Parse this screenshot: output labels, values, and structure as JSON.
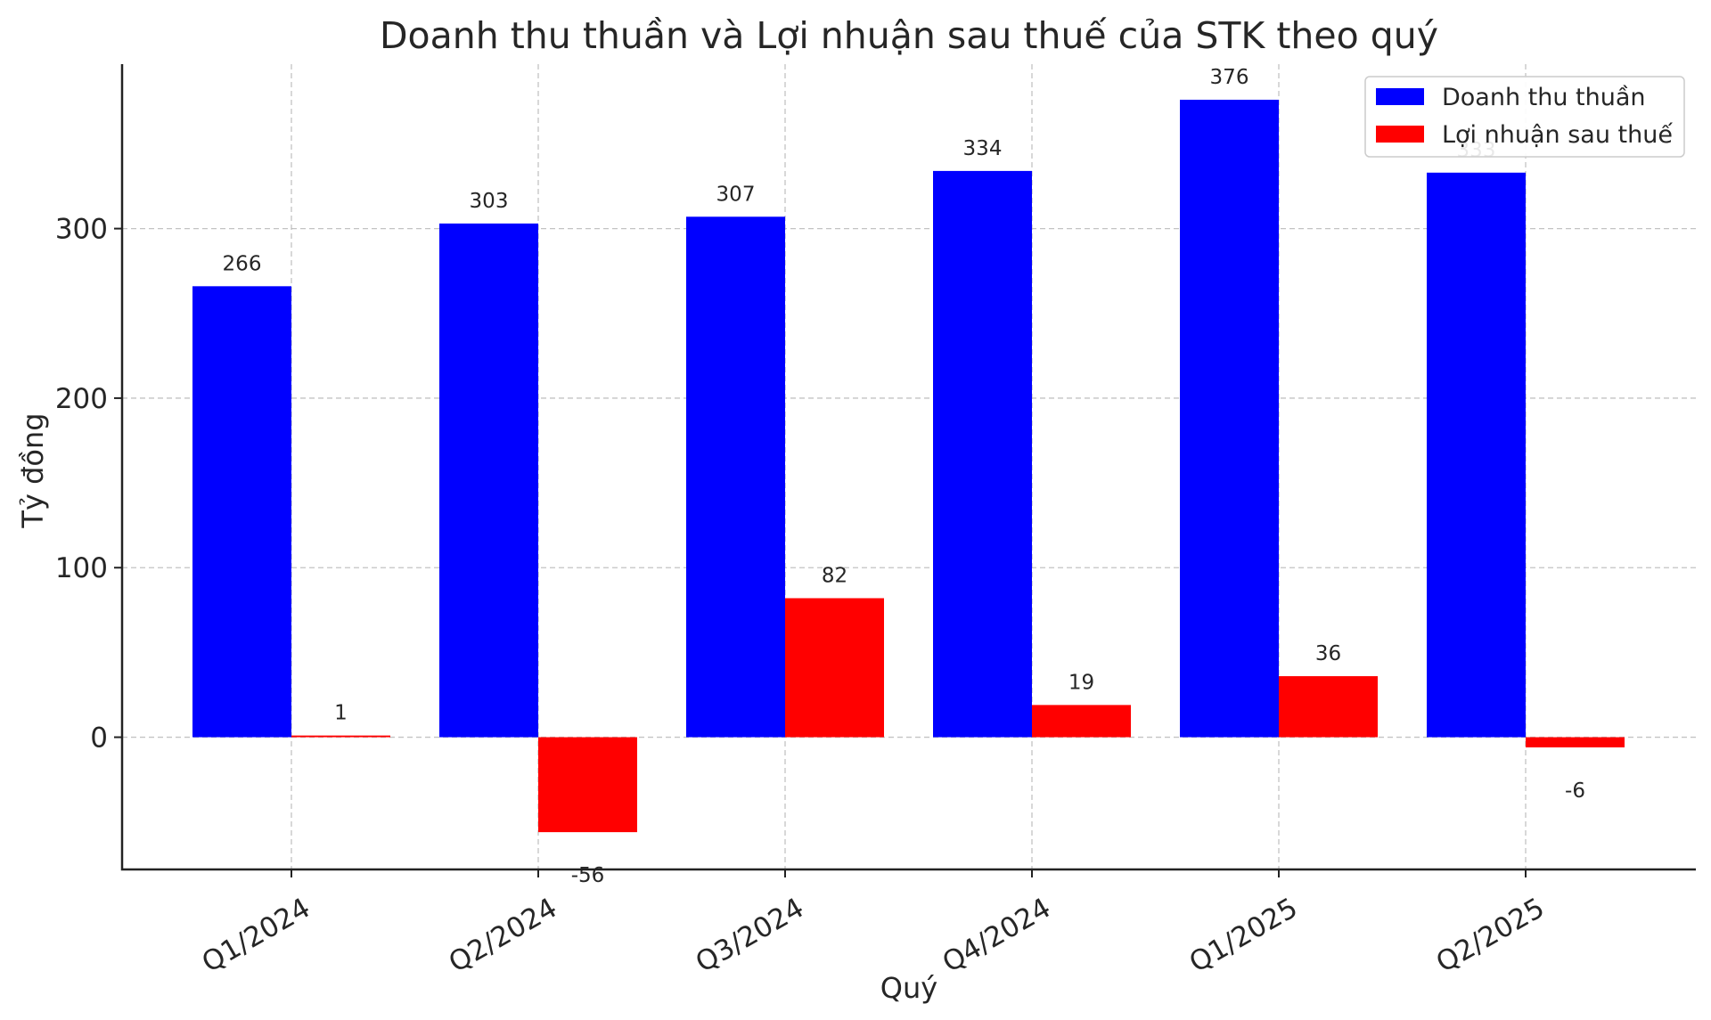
{
  "chart_data": {
    "type": "bar",
    "title": "Doanh thu thuần và Lợi nhuận sau thuế của STK theo quý",
    "xlabel": "Quý",
    "ylabel": "Tỷ đồng",
    "categories": [
      "Q1/2024",
      "Q2/2024",
      "Q3/2024",
      "Q4/2024",
      "Q1/2025",
      "Q2/2025"
    ],
    "series": [
      {
        "name": "Doanh thu thuần",
        "color": "#0000ff",
        "values": [
          266,
          303,
          307,
          334,
          376,
          333
        ]
      },
      {
        "name": "Lợi nhuận sau thuế",
        "color": "#ff0000",
        "values": [
          1,
          -56,
          82,
          19,
          36,
          -6
        ]
      }
    ],
    "ylim": [
      -78,
      397
    ],
    "yticks": [
      0,
      100,
      200,
      300
    ],
    "grid": true,
    "legend_position": "top-right",
    "xtick_rotation_deg": 30
  }
}
